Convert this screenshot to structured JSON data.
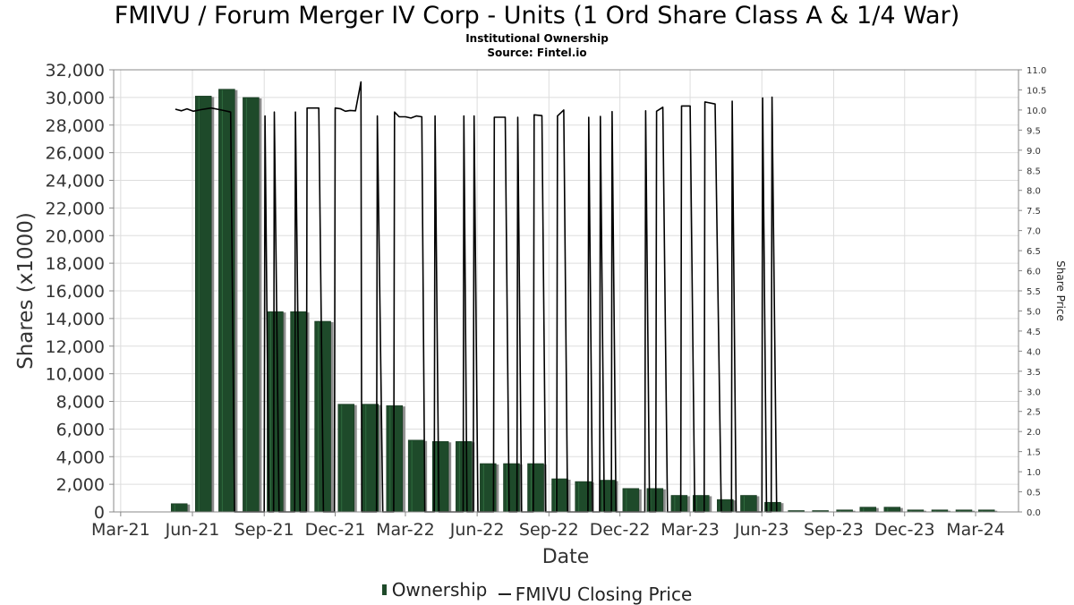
{
  "chart_data": {
    "type": "bar",
    "title": "FMIVU / Forum Merger IV Corp - Units (1 Ord Share Class A & 1/4 War)",
    "subtitle": [
      "Institutional Ownership",
      "Source: Fintel.io"
    ],
    "xlabel": "Date",
    "ylabel": "Shares (x1000)",
    "y2label": "Share Price",
    "x_ticks": [
      "Mar-21",
      "Jun-21",
      "Sep-21",
      "Dec-21",
      "Mar-22",
      "Jun-22",
      "Sep-22",
      "Dec-22",
      "Mar-23",
      "Jun-23",
      "Sep-23",
      "Dec-23",
      "Mar-24"
    ],
    "y_ticks": [
      "0",
      "2,000",
      "4,000",
      "6,000",
      "8,000",
      "10,000",
      "12,000",
      "14,000",
      "16,000",
      "18,000",
      "20,000",
      "22,000",
      "24,000",
      "26,000",
      "28,000",
      "30,000",
      "32,000"
    ],
    "y2_ticks": [
      "0.0",
      "0.5",
      "1.0",
      "1.5",
      "2.0",
      "2.5",
      "3.0",
      "3.5",
      "4.0",
      "4.5",
      "5.0",
      "5.5",
      "6.0",
      "6.5",
      "7.0",
      "7.5",
      "8.0",
      "8.5",
      "9.0",
      "9.5",
      "10.0",
      "10.5",
      "11.0"
    ],
    "ylim": [
      0,
      32000
    ],
    "y2lim": [
      0,
      11.0
    ],
    "xlim": [
      "2021-02-20",
      "2024-04-25"
    ],
    "grid": true,
    "legend_position": "bottom-center",
    "colors": {
      "bar": "#1e4a2a",
      "bar_shadow": "#8c8c8c",
      "line": "#000000",
      "grid": "#dddddd",
      "axis": "#888888"
    },
    "series": [
      {
        "name": "Ownership",
        "type": "bar",
        "x": [
          "2021-05-15",
          "2021-06-15",
          "2021-07-15",
          "2021-08-15",
          "2021-09-15",
          "2021-10-15",
          "2021-11-15",
          "2021-12-15",
          "2022-01-15",
          "2022-02-15",
          "2022-03-15",
          "2022-04-15",
          "2022-05-15",
          "2022-06-15",
          "2022-07-15",
          "2022-08-15",
          "2022-09-15",
          "2022-10-15",
          "2022-11-15",
          "2022-12-15",
          "2023-01-15",
          "2023-02-15",
          "2023-03-15",
          "2023-04-15",
          "2023-05-15",
          "2023-06-15",
          "2023-07-15",
          "2023-08-15",
          "2023-09-15",
          "2023-10-15",
          "2023-11-15",
          "2023-12-15",
          "2024-01-15",
          "2024-02-15",
          "2024-03-15"
        ],
        "values": [
          600,
          30100,
          30600,
          30000,
          14500,
          14500,
          13800,
          7800,
          7800,
          7700,
          5200,
          5100,
          5100,
          3500,
          3500,
          3500,
          2400,
          2200,
          2300,
          1700,
          1700,
          1200,
          1200,
          900,
          1200,
          700,
          100,
          100,
          150,
          350,
          350,
          150,
          150,
          150,
          150
        ]
      },
      {
        "name": "FMIVU Closing Price",
        "type": "line",
        "axis": "right",
        "points": [
          [
            "2021-05-10",
            10.02
          ],
          [
            "2021-05-18",
            9.98
          ],
          [
            "2021-05-25",
            10.03
          ],
          [
            "2021-06-02",
            9.97
          ],
          [
            "2021-06-12",
            10.01
          ],
          [
            "2021-06-25",
            10.05
          ],
          [
            "2021-07-08",
            10.0
          ],
          [
            "2021-07-20",
            9.95
          ],
          [
            "2021-07-25",
            0.0
          ],
          [
            "2021-09-01",
            0.0
          ],
          [
            "2021-09-02",
            9.85
          ],
          [
            "2021-09-07",
            0.0
          ],
          [
            "2021-09-13",
            0.0
          ],
          [
            "2021-09-14",
            9.95
          ],
          [
            "2021-09-20",
            0.0
          ],
          [
            "2021-10-10",
            0.0
          ],
          [
            "2021-10-11",
            9.95
          ],
          [
            "2021-10-17",
            0.0
          ],
          [
            "2021-10-25",
            0.0
          ],
          [
            "2021-10-26",
            10.05
          ],
          [
            "2021-11-10",
            10.05
          ],
          [
            "2021-11-16",
            0.0
          ],
          [
            "2021-11-30",
            0.0
          ],
          [
            "2021-12-01",
            10.05
          ],
          [
            "2021-12-08",
            10.03
          ],
          [
            "2021-12-14",
            9.97
          ],
          [
            "2021-12-20",
            9.99
          ],
          [
            "2021-12-27",
            9.98
          ],
          [
            "2022-01-03",
            10.7
          ],
          [
            "2022-01-04",
            0.0
          ],
          [
            "2022-01-23",
            0.0
          ],
          [
            "2022-01-24",
            9.85
          ],
          [
            "2022-01-31",
            0.0
          ],
          [
            "2022-02-14",
            0.0
          ],
          [
            "2022-02-15",
            9.95
          ],
          [
            "2022-02-21",
            9.83
          ],
          [
            "2022-03-01",
            9.83
          ],
          [
            "2022-03-08",
            9.8
          ],
          [
            "2022-03-15",
            9.85
          ],
          [
            "2022-03-22",
            9.83
          ],
          [
            "2022-03-26",
            0.0
          ],
          [
            "2022-04-07",
            0.0
          ],
          [
            "2022-04-08",
            9.85
          ],
          [
            "2022-04-13",
            0.0
          ],
          [
            "2022-05-14",
            0.0
          ],
          [
            "2022-05-15",
            9.85
          ],
          [
            "2022-05-19",
            0.0
          ],
          [
            "2022-05-27",
            0.0
          ],
          [
            "2022-05-28",
            9.85
          ],
          [
            "2022-06-02",
            0.0
          ],
          [
            "2022-06-22",
            0.0
          ],
          [
            "2022-06-23",
            9.82
          ],
          [
            "2022-07-07",
            9.82
          ],
          [
            "2022-07-12",
            0.0
          ],
          [
            "2022-07-22",
            0.0
          ],
          [
            "2022-07-23",
            9.82
          ],
          [
            "2022-07-28",
            0.0
          ],
          [
            "2022-08-12",
            0.0
          ],
          [
            "2022-08-13",
            9.88
          ],
          [
            "2022-08-23",
            9.86
          ],
          [
            "2022-08-28",
            0.0
          ],
          [
            "2022-09-11",
            0.0
          ],
          [
            "2022-09-12",
            9.85
          ],
          [
            "2022-09-20",
            10.0
          ],
          [
            "2022-09-25",
            0.0
          ],
          [
            "2022-10-21",
            0.0
          ],
          [
            "2022-10-22",
            9.82
          ],
          [
            "2022-10-27",
            0.0
          ],
          [
            "2022-11-05",
            0.0
          ],
          [
            "2022-11-06",
            9.84
          ],
          [
            "2022-11-11",
            0.0
          ],
          [
            "2022-11-20",
            0.0
          ],
          [
            "2022-11-21",
            9.96
          ],
          [
            "2022-11-26",
            0.0
          ],
          [
            "2023-01-02",
            0.0
          ],
          [
            "2023-01-03",
            9.98
          ],
          [
            "2023-01-08",
            0.0
          ],
          [
            "2023-01-16",
            0.0
          ],
          [
            "2023-01-17",
            9.97
          ],
          [
            "2023-01-25",
            10.07
          ],
          [
            "2023-01-31",
            0.0
          ],
          [
            "2023-02-17",
            0.0
          ],
          [
            "2023-02-18",
            10.1
          ],
          [
            "2023-03-01",
            10.1
          ],
          [
            "2023-03-07",
            0.0
          ],
          [
            "2023-03-19",
            0.0
          ],
          [
            "2023-03-20",
            10.2
          ],
          [
            "2023-04-02",
            10.15
          ],
          [
            "2023-04-10",
            0.0
          ],
          [
            "2023-04-23",
            0.0
          ],
          [
            "2023-04-24",
            10.22
          ],
          [
            "2023-04-29",
            0.0
          ],
          [
            "2023-06-01",
            0.0
          ],
          [
            "2023-06-02",
            10.3
          ],
          [
            "2023-06-07",
            0.0
          ],
          [
            "2023-06-13",
            0.0
          ],
          [
            "2023-06-14",
            10.32
          ],
          [
            "2023-06-20",
            0.0
          ]
        ]
      }
    ]
  }
}
